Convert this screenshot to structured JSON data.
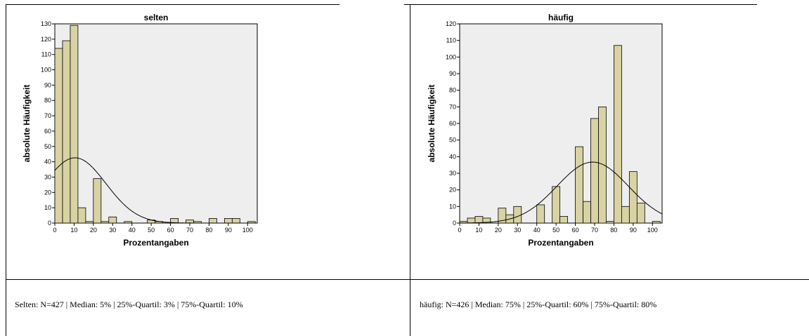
{
  "charts": [
    {
      "chart_data": {
        "type": "bar",
        "title": "selten",
        "xlabel": "Prozentangaben",
        "ylabel": "absolute Häufigkeit",
        "xlim": [
          0,
          105
        ],
        "ylim": [
          0,
          130
        ],
        "xticks": [
          0,
          10,
          20,
          30,
          40,
          50,
          60,
          70,
          80,
          90,
          100
        ],
        "yticks": [
          0,
          10,
          20,
          30,
          40,
          50,
          60,
          70,
          80,
          90,
          100,
          110,
          120,
          130
        ],
        "bin_width": 4,
        "bins": [
          {
            "x0": 0,
            "value": 114
          },
          {
            "x0": 4,
            "value": 119
          },
          {
            "x0": 8,
            "value": 129
          },
          {
            "x0": 12,
            "value": 10
          },
          {
            "x0": 16,
            "value": 1
          },
          {
            "x0": 20,
            "value": 29
          },
          {
            "x0": 24,
            "value": 1
          },
          {
            "x0": 28,
            "value": 4
          },
          {
            "x0": 32,
            "value": 0
          },
          {
            "x0": 36,
            "value": 1
          },
          {
            "x0": 40,
            "value": 0
          },
          {
            "x0": 44,
            "value": 0
          },
          {
            "x0": 48,
            "value": 2
          },
          {
            "x0": 52,
            "value": 1
          },
          {
            "x0": 56,
            "value": 0
          },
          {
            "x0": 60,
            "value": 3
          },
          {
            "x0": 64,
            "value": 0
          },
          {
            "x0": 68,
            "value": 2
          },
          {
            "x0": 72,
            "value": 1
          },
          {
            "x0": 76,
            "value": 0
          },
          {
            "x0": 80,
            "value": 3
          },
          {
            "x0": 84,
            "value": 0
          },
          {
            "x0": 88,
            "value": 3
          },
          {
            "x0": 92,
            "value": 3
          },
          {
            "x0": 96,
            "value": 0
          },
          {
            "x0": 100,
            "value": 1
          }
        ],
        "normal_curve": {
          "mean": 10.5,
          "sd": 16,
          "n": 427
        },
        "background": "#eeeeee",
        "bar_fill": "#d9d3a3",
        "bar_stroke": "#000000",
        "grid": false
      }
    },
    {
      "chart_data": {
        "type": "bar",
        "title": "häufig",
        "xlabel": "Prozentangaben",
        "ylabel": "absolute Häufigkeit",
        "xlim": [
          0,
          105
        ],
        "ylim": [
          0,
          120
        ],
        "xticks": [
          0,
          10,
          20,
          30,
          40,
          50,
          60,
          70,
          80,
          90,
          100
        ],
        "yticks": [
          0,
          10,
          20,
          30,
          40,
          50,
          60,
          70,
          80,
          90,
          100,
          110,
          120
        ],
        "bin_width": 4,
        "bins": [
          {
            "x0": 0,
            "value": 1
          },
          {
            "x0": 4,
            "value": 3
          },
          {
            "x0": 8,
            "value": 4
          },
          {
            "x0": 12,
            "value": 3
          },
          {
            "x0": 16,
            "value": 0
          },
          {
            "x0": 20,
            "value": 9
          },
          {
            "x0": 24,
            "value": 5
          },
          {
            "x0": 28,
            "value": 10
          },
          {
            "x0": 32,
            "value": 0
          },
          {
            "x0": 36,
            "value": 0
          },
          {
            "x0": 40,
            "value": 11
          },
          {
            "x0": 44,
            "value": 0
          },
          {
            "x0": 48,
            "value": 22
          },
          {
            "x0": 52,
            "value": 4
          },
          {
            "x0": 56,
            "value": 0
          },
          {
            "x0": 60,
            "value": 46
          },
          {
            "x0": 64,
            "value": 13
          },
          {
            "x0": 68,
            "value": 63
          },
          {
            "x0": 72,
            "value": 70
          },
          {
            "x0": 76,
            "value": 1
          },
          {
            "x0": 80,
            "value": 107
          },
          {
            "x0": 84,
            "value": 10
          },
          {
            "x0": 88,
            "value": 31
          },
          {
            "x0": 92,
            "value": 12
          },
          {
            "x0": 96,
            "value": 0
          },
          {
            "x0": 100,
            "value": 1
          }
        ],
        "normal_curve": {
          "mean": 69,
          "sd": 18.5,
          "n": 426
        },
        "background": "#eeeeee",
        "bar_fill": "#d9d3a3",
        "bar_stroke": "#000000",
        "grid": false
      }
    }
  ],
  "captions": [
    "Selten: N=427 | Median: 5% | 25%-Quartil: 3% | 75%-Quartil: 10%",
    "häufig: N=426 | Median: 75% | 25%-Quartil: 60% | 75%-Quartil: 80%"
  ]
}
